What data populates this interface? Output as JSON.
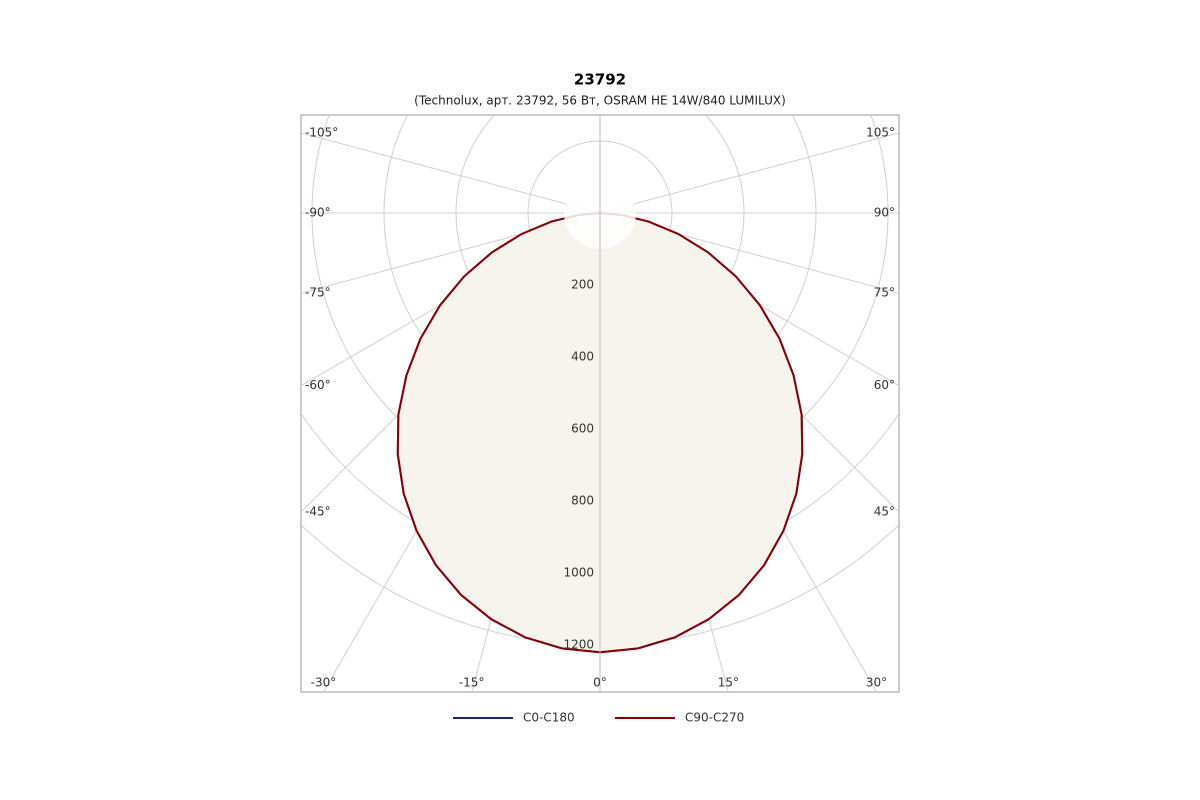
{
  "chart_data": {
    "type": "polar",
    "title": "23792",
    "subtitle": "(Technolux, арт. 23792, 56 Вт, OSRAM HE 14W/840 LUMILUX)",
    "angles": [
      -90,
      -85,
      -80,
      -75,
      -70,
      -65,
      -60,
      -55,
      -50,
      -45,
      -40,
      -35,
      -30,
      -25,
      -20,
      -15,
      -10,
      -5,
      0,
      5,
      10,
      15,
      20,
      25,
      30,
      35,
      40,
      45,
      50,
      55,
      60,
      65,
      70,
      75,
      80,
      85,
      90
    ],
    "series": [
      {
        "name": "C0-C180",
        "color": "#1a237e",
        "values": [
          0,
          58,
          137,
          225,
          319,
          416,
          513,
          609,
          702,
          792,
          874,
          951,
          1019,
          1079,
          1129,
          1168,
          1197,
          1214,
          1220,
          1214,
          1197,
          1168,
          1129,
          1079,
          1019,
          951,
          874,
          792,
          702,
          609,
          513,
          416,
          319,
          225,
          137,
          58,
          0
        ]
      },
      {
        "name": "C90-C270",
        "color": "#8b0000",
        "values": [
          0,
          58,
          137,
          225,
          319,
          416,
          513,
          609,
          702,
          792,
          874,
          951,
          1019,
          1079,
          1129,
          1168,
          1197,
          1214,
          1220,
          1214,
          1197,
          1168,
          1129,
          1079,
          1019,
          951,
          874,
          792,
          702,
          609,
          513,
          416,
          319,
          225,
          137,
          58,
          0
        ]
      }
    ],
    "rlim": [
      0,
      1200
    ],
    "rticks": [
      200,
      400,
      600,
      800,
      1000,
      1200
    ],
    "angle_ticks": [
      {
        "value": -105,
        "label": "-105°"
      },
      {
        "value": -90,
        "label": "-90°"
      },
      {
        "value": -75,
        "label": "-75°"
      },
      {
        "value": -60,
        "label": "-60°"
      },
      {
        "value": -45,
        "label": "-45°"
      },
      {
        "value": -30,
        "label": "-30°"
      },
      {
        "value": -15,
        "label": "-15°"
      },
      {
        "value": 0,
        "label": "0°"
      },
      {
        "value": 15,
        "label": "15°"
      },
      {
        "value": 30,
        "label": "30°"
      },
      {
        "value": 45,
        "label": "45°"
      },
      {
        "value": 60,
        "label": "60°"
      },
      {
        "value": 75,
        "label": "75°"
      },
      {
        "value": 90,
        "label": "90°"
      },
      {
        "value": 105,
        "label": "105°"
      }
    ],
    "grid": true,
    "fill": "#f7f4ee"
  }
}
